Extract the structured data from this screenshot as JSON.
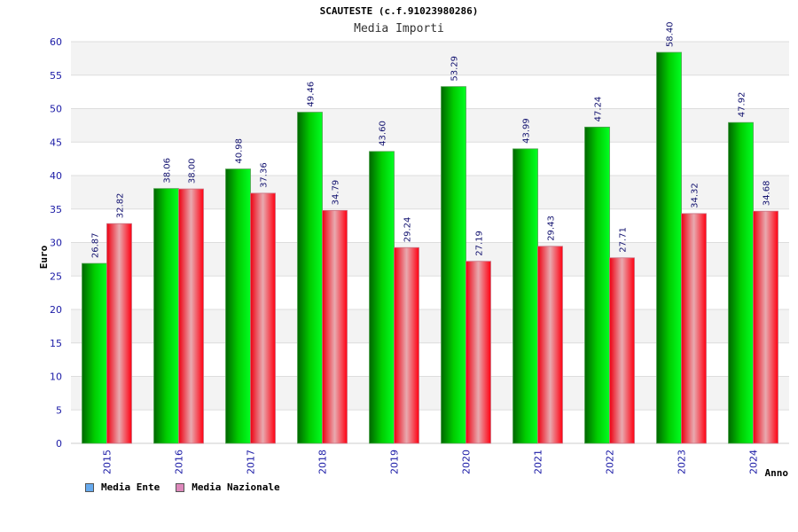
{
  "chart_data": {
    "type": "bar",
    "title": "SCAUTESTE (c.f.91023980286)",
    "subtitle": "Media Importi",
    "xlabel": "Anno",
    "ylabel": "Euro",
    "ylim": [
      0,
      60
    ],
    "yticks": [
      0,
      5,
      10,
      15,
      20,
      25,
      30,
      35,
      40,
      45,
      50,
      55,
      60
    ],
    "grid": true,
    "legend_position": "bottom-left",
    "categories": [
      "2015",
      "2016",
      "2017",
      "2018",
      "2019",
      "2020",
      "2021",
      "2022",
      "2023",
      "2024"
    ],
    "series": [
      {
        "name": "Media Ente",
        "values": [
          26.87,
          38.06,
          40.98,
          49.46,
          43.6,
          53.29,
          43.99,
          47.24,
          58.4,
          47.92
        ],
        "labels": [
          "26.87",
          "38.06",
          "40.98",
          "49.46",
          "43.60",
          "53.29",
          "43.99",
          "47.24",
          "58.40",
          "47.92"
        ],
        "color": "#00bb00",
        "legend_color": "#66aaee"
      },
      {
        "name": "Media Nazionale",
        "values": [
          32.82,
          38.0,
          37.36,
          34.79,
          29.24,
          27.19,
          29.43,
          27.71,
          34.32,
          34.68
        ],
        "labels": [
          "32.82",
          "38.00",
          "37.36",
          "34.79",
          "29.24",
          "27.19",
          "29.43",
          "27.71",
          "34.32",
          "34.68"
        ],
        "color": "#ee1122",
        "legend_color": "#dd88bb"
      }
    ]
  }
}
